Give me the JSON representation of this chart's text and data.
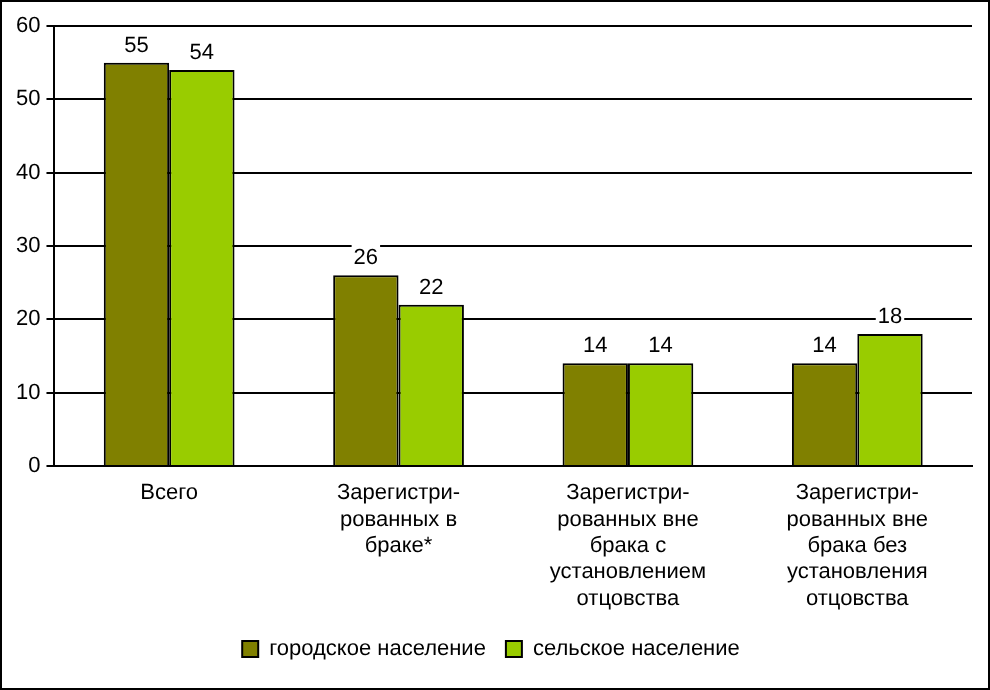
{
  "chart_data": {
    "type": "bar",
    "categories": [
      "Всего",
      "Зарегистри- рованных в браке*",
      "Зарегистри- рованных вне брака с установлением отцовства",
      "Зарегистри- рованных вне брака без установления отцовства"
    ],
    "series": [
      {
        "name": "городское население",
        "color": "#808000",
        "values": [
          55,
          26,
          14,
          14
        ]
      },
      {
        "name": "сельское население",
        "color": "#99cc00",
        "values": [
          54,
          22,
          14,
          18
        ]
      }
    ],
    "ylim": [
      0,
      60
    ],
    "yticks": [
      0,
      10,
      20,
      30,
      40,
      50,
      60
    ],
    "grid": "y",
    "legend": "bottom",
    "data_labels": true
  }
}
